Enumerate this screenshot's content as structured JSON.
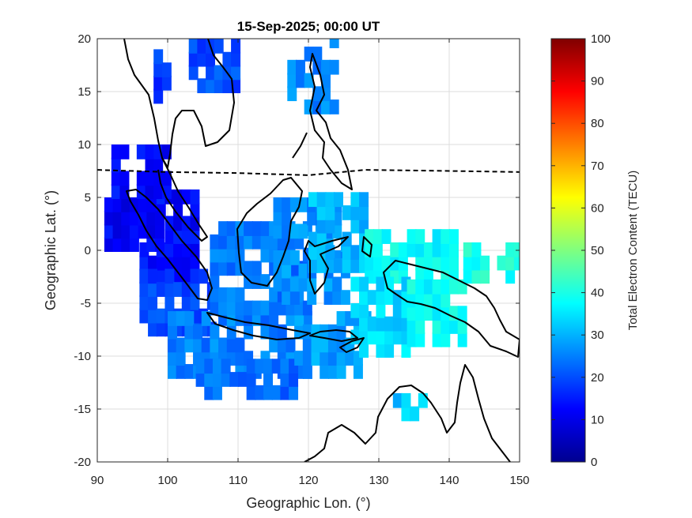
{
  "map": {
    "title": "15-Sep-2025; 00:00 UT",
    "xlabel": "Geographic Lon. (°)",
    "ylabel": "Geographic Lat. (°)",
    "xlim": [
      90,
      150
    ],
    "ylim": [
      -20,
      20
    ],
    "xticks": [
      "90",
      "100",
      "110",
      "120",
      "130",
      "140",
      "150"
    ],
    "yticks": [
      "20",
      "15",
      "10",
      "5",
      "0",
      "-5",
      "-10",
      "-15",
      "-20"
    ],
    "grid": true,
    "overlays": [
      "coastlines",
      "magnetic-equator-dashed"
    ]
  },
  "colorbar": {
    "label": "Total Electron Content (TECU)",
    "range": [
      0,
      100
    ],
    "ticks": [
      "100",
      "90",
      "80",
      "70",
      "60",
      "50",
      "40",
      "30",
      "20",
      "10",
      "0"
    ],
    "colormap": "jet"
  },
  "chart_data": {
    "type": "heatmap",
    "title": "15-Sep-2025; 00:00 UT",
    "xlabel": "Geographic Lon. (°)",
    "ylabel": "Geographic Lat. (°)",
    "xlim": [
      90,
      150
    ],
    "ylim": [
      -20,
      20
    ],
    "clim": [
      0,
      100
    ],
    "legend_placement": "right",
    "magnetic_equator_lat": [
      [
        90,
        7.6
      ],
      [
        100,
        7.4
      ],
      [
        110,
        7.3
      ],
      [
        120,
        7.1
      ],
      [
        128,
        7.6
      ],
      [
        140,
        7.5
      ],
      [
        150,
        7.4
      ]
    ],
    "tec_regions": [
      {
        "lon": [
          96,
          104
        ],
        "lat": [
          -3,
          5
        ],
        "tec": 13
      },
      {
        "lon": [
          91,
          99
        ],
        "lat": [
          0,
          5
        ],
        "tec": 12
      },
      {
        "lon": [
          92,
          100
        ],
        "lat": [
          5,
          10
        ],
        "tec": 13
      },
      {
        "lon": [
          96,
          106
        ],
        "lat": [
          -8,
          -2
        ],
        "tec": 19
      },
      {
        "lon": [
          100,
          120
        ],
        "lat": [
          -12,
          -6
        ],
        "tec": 25
      },
      {
        "lon": [
          104,
          118
        ],
        "lat": [
          -14,
          -11
        ],
        "tec": 23
      },
      {
        "lon": [
          118,
          128
        ],
        "lat": [
          -12,
          -6
        ],
        "tec": 28
      },
      {
        "lon": [
          106,
          120
        ],
        "lat": [
          -6,
          2
        ],
        "tec": 24
      },
      {
        "lon": [
          115,
          125
        ],
        "lat": [
          -5,
          5
        ],
        "tec": 27
      },
      {
        "lon": [
          120,
          128
        ],
        "lat": [
          -2,
          5
        ],
        "tec": 31
      },
      {
        "lon": [
          128,
          140
        ],
        "lat": [
          -3,
          2
        ],
        "tec": 38
      },
      {
        "lon": [
          126,
          134
        ],
        "lat": [
          -10,
          -3
        ],
        "tec": 34
      },
      {
        "lon": [
          134,
          142
        ],
        "lat": [
          -9,
          -3
        ],
        "tec": 38
      },
      {
        "lon": [
          142,
          150
        ],
        "lat": [
          -3,
          0
        ],
        "tec": 40
      },
      {
        "lon": [
          98,
          100
        ],
        "lat": [
          14,
          18
        ],
        "tec": 18
      },
      {
        "lon": [
          103,
          110
        ],
        "lat": [
          15,
          20
        ],
        "tec": 20
      },
      {
        "lon": [
          117,
          124
        ],
        "lat": [
          13,
          20
        ],
        "tec": 26
      },
      {
        "lon": [
          132,
          136
        ],
        "lat": [
          -16,
          -14
        ],
        "tec": 32
      }
    ]
  }
}
